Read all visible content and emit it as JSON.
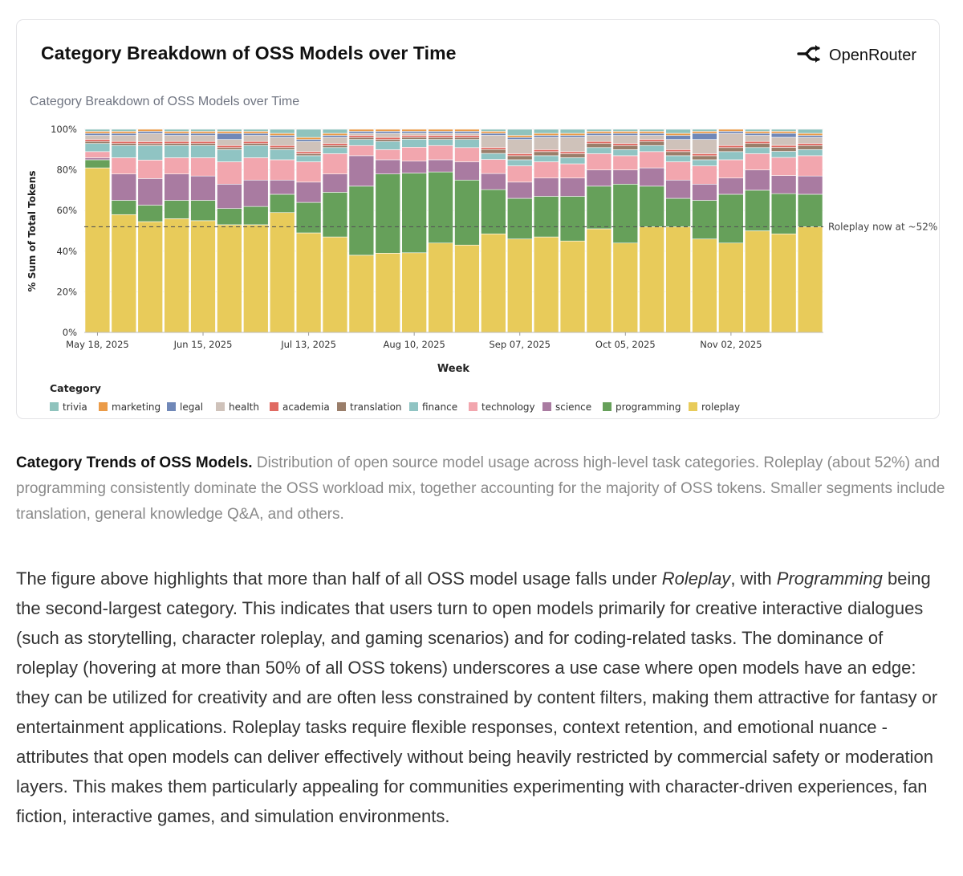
{
  "card": {
    "title": "Category Breakdown of OSS Models over Time",
    "brand": "OpenRouter"
  },
  "chart_data": {
    "type": "bar",
    "stacked": true,
    "title": "Category Breakdown of OSS Models over Time",
    "xlabel": "Week",
    "ylabel": "% Sum of Total Tokens",
    "ylim": [
      0,
      100
    ],
    "yticks": [
      "0%",
      "20%",
      "40%",
      "60%",
      "80%",
      "100%"
    ],
    "xticks": [
      "May 18, 2025",
      "Jun 15, 2025",
      "Jul 13, 2025",
      "Aug 10, 2025",
      "Sep 07, 2025",
      "Oct 05, 2025",
      "Nov 02, 2025"
    ],
    "xtick_week_index": [
      0,
      4,
      8,
      12,
      16,
      20,
      24
    ],
    "num_weeks": 28,
    "legend_title": "Category",
    "legend_position": "bottom",
    "reference_line": {
      "value": 52,
      "label": "Roleplay now at ~52%",
      "style": "dashed"
    },
    "series": [
      {
        "name": "roleplay",
        "color": "#E8CB5A",
        "values": [
          81,
          58,
          54,
          56,
          55,
          53,
          53,
          59,
          49,
          47,
          38,
          39,
          40,
          44,
          43,
          49,
          46,
          47,
          45,
          51,
          44,
          52,
          52,
          46,
          44,
          50,
          49,
          52
        ]
      },
      {
        "name": "programming",
        "color": "#66A05A",
        "values": [
          4,
          7,
          8,
          9,
          10,
          8,
          9,
          9,
          15,
          22,
          34,
          39,
          40,
          35,
          32,
          22,
          20,
          20,
          22,
          21,
          29,
          20,
          14,
          19,
          24,
          20,
          20,
          16
        ]
      },
      {
        "name": "science",
        "color": "#A97BA1",
        "values": [
          1,
          13,
          13,
          13,
          12,
          12,
          13,
          7,
          10,
          9,
          15,
          7,
          6,
          6,
          9,
          8,
          8,
          9,
          9,
          8,
          7,
          9,
          9,
          8,
          8,
          10,
          9,
          9
        ]
      },
      {
        "name": "technology",
        "color": "#F2A6AE",
        "values": [
          3,
          8,
          9,
          8,
          9,
          11,
          11,
          10,
          10,
          10,
          5,
          5,
          7,
          7,
          7,
          7,
          8,
          8,
          7,
          8,
          7,
          8,
          9,
          9,
          9,
          8,
          9,
          10
        ]
      },
      {
        "name": "finance",
        "color": "#90C4C3",
        "values": [
          4,
          6,
          7,
          6,
          6,
          6,
          6,
          5,
          3,
          3,
          3,
          4,
          4,
          3,
          4,
          3,
          3,
          3,
          3,
          3,
          3,
          3,
          3,
          3,
          4,
          3,
          3,
          3
        ]
      },
      {
        "name": "translation",
        "color": "#9A7E6A",
        "values": [
          1,
          1,
          1,
          1,
          1,
          1,
          1,
          1,
          1,
          1,
          1,
          1,
          1,
          1,
          1,
          2,
          2,
          2,
          2,
          2,
          2,
          2,
          2,
          2,
          2,
          2,
          2,
          2
        ]
      },
      {
        "name": "academia",
        "color": "#E06A62",
        "values": [
          1,
          1,
          1,
          1,
          1,
          1,
          1,
          1,
          1,
          1,
          1,
          1,
          1,
          1,
          1,
          1,
          1,
          1,
          1,
          1,
          1,
          1,
          1,
          1,
          1,
          1,
          1,
          1
        ]
      },
      {
        "name": "health",
        "color": "#CFC2BA",
        "values": [
          2,
          3,
          4,
          3,
          3,
          3,
          3,
          4,
          5,
          3,
          1,
          2,
          1,
          1,
          1,
          6,
          7,
          6,
          7,
          3,
          4,
          2,
          5,
          7,
          6,
          3,
          4,
          3
        ]
      },
      {
        "name": "legal",
        "color": "#7088B8",
        "values": [
          1,
          1,
          1,
          1,
          1,
          3,
          1,
          1,
          1,
          1,
          1,
          1,
          1,
          1,
          1,
          1,
          1,
          1,
          1,
          1,
          1,
          1,
          2,
          3,
          1,
          1,
          2,
          1
        ]
      },
      {
        "name": "marketing",
        "color": "#EB9B48",
        "values": [
          1,
          1,
          1,
          1,
          1,
          1,
          1,
          1,
          1,
          1,
          1,
          1,
          1,
          1,
          1,
          1,
          1,
          1,
          1,
          1,
          1,
          1,
          1,
          1,
          1,
          1,
          1,
          1
        ]
      },
      {
        "name": "trivia",
        "color": "#8FC3BD",
        "values": [
          1,
          1,
          0,
          1,
          1,
          1,
          1,
          2,
          4,
          2,
          0,
          0,
          0,
          0,
          0,
          1,
          3,
          2,
          2,
          1,
          1,
          1,
          2,
          1,
          0,
          1,
          1,
          2
        ]
      }
    ],
    "legend_order": [
      "trivia",
      "marketing",
      "legal",
      "health",
      "academia",
      "translation",
      "finance",
      "technology",
      "science",
      "programming",
      "roleplay"
    ]
  },
  "caption": {
    "bold": "Category Trends of OSS Models.",
    "text": "Distribution of open source model usage across high-level task categories. Roleplay (about 52%) and programming consistently dominate the OSS workload mix, together accounting for the majority of OSS tokens. Smaller segments include translation, general knowledge Q&A, and others."
  },
  "body": {
    "p1": "The figure above highlights that more than half of all OSS model usage falls under ",
    "em1": "Roleplay",
    "p2": ", with ",
    "em2": "Programming",
    "p3": " being the second-largest category. This indicates that users turn to open models primarily for creative interactive dialogues (such as storytelling, character roleplay, and gaming scenarios) and for coding-related tasks. The dominance of roleplay (hovering at more than 50% of all OSS tokens) underscores a use case where open models have an edge: they can be utilized for creativity and are often less constrained by content filters, making them attractive for fantasy or entertainment applications. Roleplay tasks require flexible responses, context retention, and emotional nuance - attributes that open models can deliver effectively without being heavily restricted by commercial safety or moderation layers. This makes them particularly appealing for communities experimenting with character-driven experiences, fan fiction, interactive games, and simulation environments."
  }
}
